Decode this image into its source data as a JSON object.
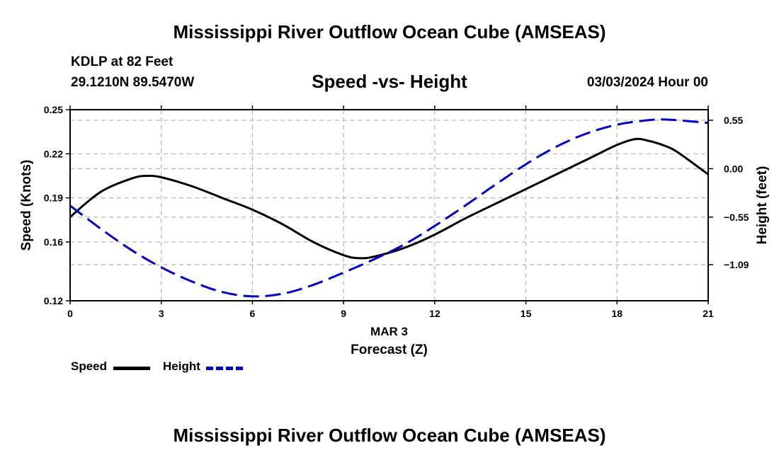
{
  "page": {
    "title": "Mississippi River Outflow Ocean Cube (AMSEAS)",
    "station": "KDLP at 82 Feet",
    "coords": "29.1210N  89.5470W",
    "subtitle": "Speed -vs- Height",
    "datetime": "03/03/2024 Hour 00",
    "footer_title": "Mississippi River Outflow Ocean Cube (AMSEAS)"
  },
  "legend": {
    "speed_label": "Speed",
    "height_label": "Height"
  },
  "colors": {
    "speed": "#000000",
    "height": "#0000cc",
    "grid": "#b4b4b4"
  },
  "chart_data": {
    "type": "line",
    "title": "Speed -vs- Height",
    "xlabel": "Forecast (Z)",
    "xlabel_date": "MAR 3",
    "ylabel": "Speed (Knots)",
    "y2label": "Height (feet)",
    "xlim": [
      0,
      21
    ],
    "ylim": [
      0.12,
      0.25
    ],
    "y2lim": [
      -1.5,
      0.67
    ],
    "x_ticks": [
      0,
      3,
      6,
      9,
      12,
      15,
      18,
      21
    ],
    "y_ticks": [
      0.12,
      0.16,
      0.19,
      0.22,
      0.25
    ],
    "y_tick_labels": [
      "0.12",
      "0.16",
      "0.19",
      "0.22",
      "0.25"
    ],
    "y2_ticks": [
      0.55,
      0.0,
      -0.55,
      -1.09
    ],
    "y2_tick_labels": [
      "0.55",
      "0.00",
      "−0.55",
      "−1.09"
    ],
    "grid": true,
    "series": [
      {
        "name": "Speed",
        "axis": "left",
        "style": "solid",
        "x": [
          0,
          1,
          2,
          2.5,
          3,
          4,
          5,
          6,
          7,
          8,
          9,
          9.5,
          10,
          11,
          12,
          13,
          14,
          15,
          16,
          17,
          18,
          18.6,
          19,
          19.5,
          20,
          21
        ],
        "y": [
          0.177,
          0.194,
          0.203,
          0.205,
          0.204,
          0.198,
          0.19,
          0.182,
          0.172,
          0.16,
          0.151,
          0.149,
          0.15,
          0.156,
          0.165,
          0.176,
          0.186,
          0.196,
          0.206,
          0.216,
          0.226,
          0.23,
          0.229,
          0.226,
          0.221,
          0.206
        ]
      },
      {
        "name": "Height",
        "axis": "right",
        "style": "dashed",
        "x": [
          0,
          1,
          2,
          3,
          4,
          5,
          6,
          7,
          8,
          9,
          10,
          11,
          12,
          13,
          14,
          15,
          16,
          17,
          18,
          19,
          19.5,
          20,
          21
        ],
        "y": [
          -0.42,
          -0.68,
          -0.92,
          -1.12,
          -1.28,
          -1.4,
          -1.45,
          -1.42,
          -1.32,
          -1.18,
          -1.03,
          -0.86,
          -0.65,
          -0.42,
          -0.18,
          0.05,
          0.25,
          0.4,
          0.5,
          0.55,
          0.56,
          0.55,
          0.52
        ]
      }
    ]
  }
}
